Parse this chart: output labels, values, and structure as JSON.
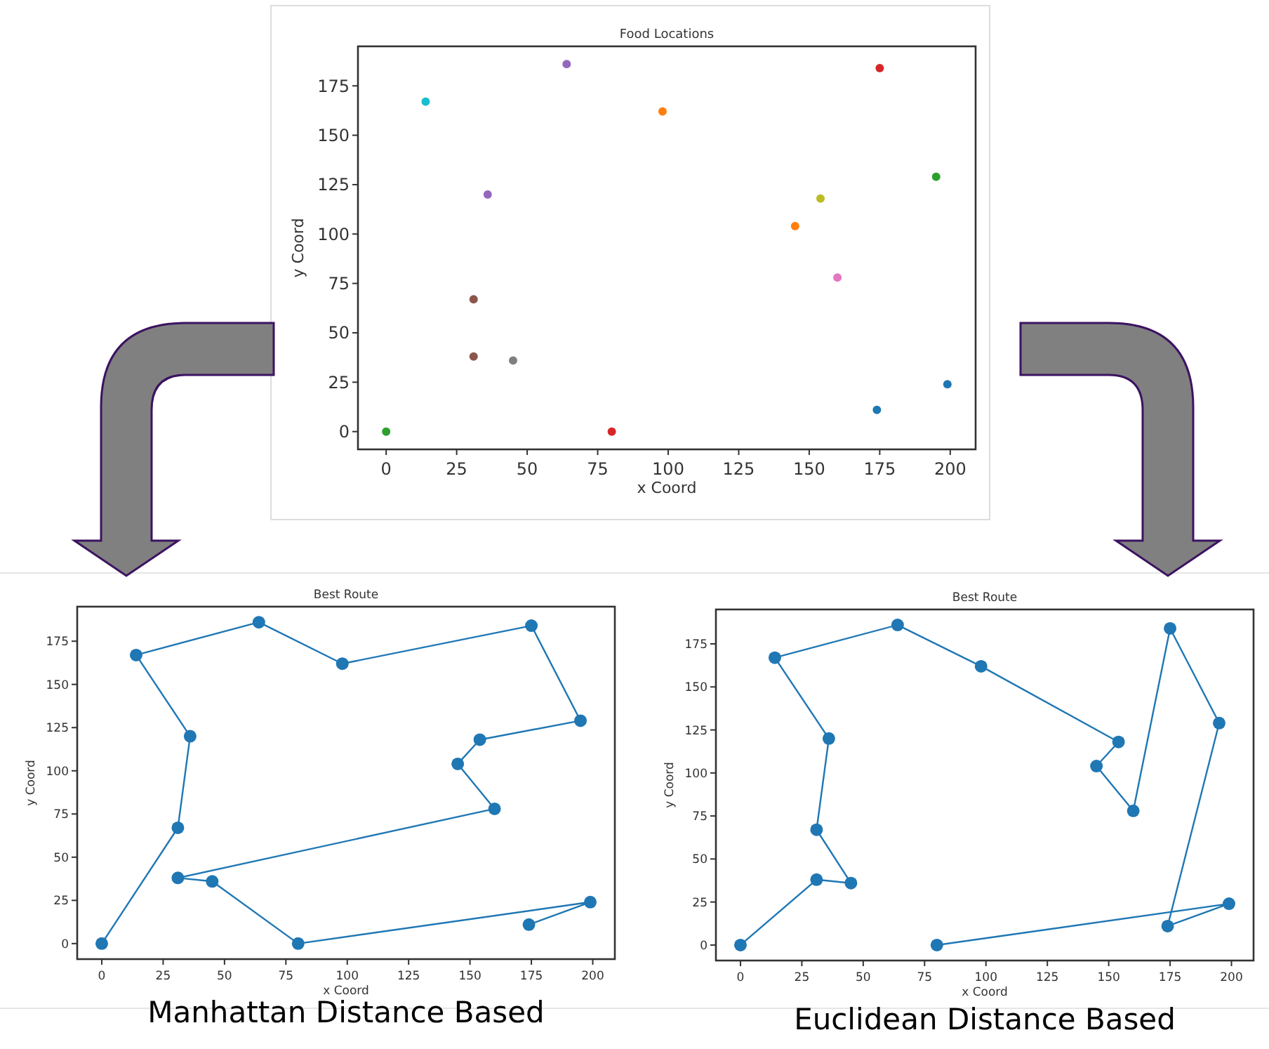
{
  "chart_data": [
    {
      "type": "scatter",
      "title": "Food Locations",
      "xlabel": "x Coord",
      "ylabel": "y Coord",
      "xlim": [
        -10,
        209
      ],
      "ylim": [
        -9,
        195
      ],
      "xticks": [
        0,
        25,
        50,
        75,
        100,
        125,
        150,
        175,
        200
      ],
      "yticks": [
        0,
        25,
        50,
        75,
        100,
        125,
        150,
        175
      ],
      "marker": "circle",
      "x": [
        0,
        14,
        64,
        98,
        175,
        195,
        154,
        145,
        160,
        31,
        45,
        80,
        199,
        174,
        36,
        31
      ],
      "values": [
        0,
        167,
        186,
        162,
        184,
        129,
        118,
        104,
        78,
        38,
        36,
        0,
        24,
        11,
        120,
        67
      ],
      "colors": [
        "#2ca02c",
        "#17becf",
        "#9467bd",
        "#ff7f0e",
        "#d62728",
        "#2ca02c",
        "#bcbd22",
        "#ff7f0e",
        "#e377c2",
        "#8c564b",
        "#7f7f7f",
        "#d62728",
        "#1f77b4",
        "#1f77b4",
        "#9467bd",
        "#8c564b"
      ]
    },
    {
      "type": "line",
      "title": "Best Route",
      "xlabel": "x Coord",
      "ylabel": "y Coord",
      "xlim": [
        -10,
        209
      ],
      "ylim": [
        -9,
        195
      ],
      "xticks": [
        0,
        25,
        50,
        75,
        100,
        125,
        150,
        175,
        200
      ],
      "yticks": [
        0,
        25,
        50,
        75,
        100,
        125,
        150,
        175
      ],
      "marker": "circle",
      "annotations": [
        "Manhattan Distance Based"
      ],
      "series": [
        {
          "color": "#1f77b4",
          "x": [
            0,
            31,
            36,
            14,
            64,
            98,
            175,
            195,
            154,
            145,
            160,
            31,
            45,
            80,
            199,
            174
          ],
          "values": [
            0,
            67,
            120,
            167,
            186,
            162,
            184,
            129,
            118,
            104,
            78,
            38,
            36,
            0,
            24,
            11
          ]
        }
      ]
    },
    {
      "type": "line",
      "title": "Best Route",
      "xlabel": "x Coord",
      "ylabel": "y Coord",
      "xlim": [
        -10,
        209
      ],
      "ylim": [
        -9,
        195
      ],
      "xticks": [
        0,
        25,
        50,
        75,
        100,
        125,
        150,
        175,
        200
      ],
      "yticks": [
        0,
        25,
        50,
        75,
        100,
        125,
        150,
        175
      ],
      "marker": "circle",
      "annotations": [
        "Euclidean Distance Based"
      ],
      "series": [
        {
          "color": "#1f77b4",
          "x": [
            0,
            31,
            45,
            31,
            36,
            14,
            64,
            98,
            154,
            145,
            160,
            175,
            195,
            174,
            199,
            80
          ],
          "values": [
            0,
            38,
            36,
            67,
            120,
            167,
            186,
            162,
            118,
            104,
            78,
            184,
            129,
            11,
            24,
            0
          ]
        }
      ]
    }
  ]
}
